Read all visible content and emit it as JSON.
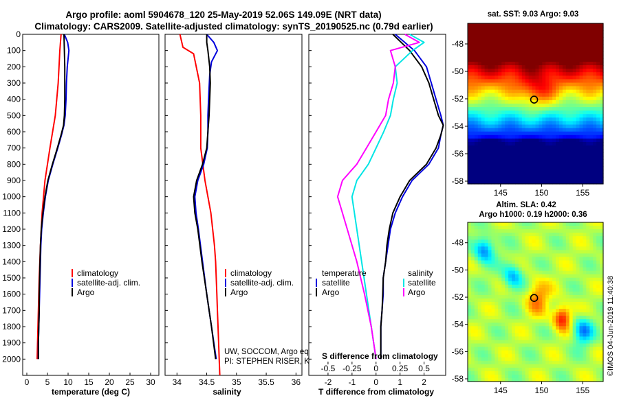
{
  "header": {
    "line1": "Argo profile: aoml 5904678_120 25-May-2019 52.06S 149.09E (NRT data)",
    "line2": "Climatology: CARS2009. Satellite-adjusted climatology: synTS_20190525.nc (0.79d earlier)"
  },
  "colors": {
    "climatology": "#ff0000",
    "satellite": "#0000dd",
    "argo": "#000000",
    "sal_satellite": "#00e5e5",
    "sal_argo": "#ff00ff"
  },
  "chart_data": [
    {
      "id": "temperature",
      "type": "line",
      "xlabel": "temperature (deg C)",
      "xlim": [
        -1,
        32
      ],
      "xticks": [
        "0",
        "5",
        "10",
        "15",
        "20",
        "25",
        "30"
      ],
      "ylim": [
        2100,
        0
      ],
      "yticks": [
        "0",
        "100",
        "200",
        "300",
        "400",
        "500",
        "600",
        "700",
        "800",
        "900",
        "1000",
        "1100",
        "1200",
        "1300",
        "1400",
        "1500",
        "1600",
        "1700",
        "1800",
        "1900",
        "2000"
      ],
      "legend": [
        "climatology",
        "satellite-adj. clim.",
        "Argo"
      ],
      "series": [
        {
          "name": "climatology",
          "color": "#ff0000",
          "depth": [
            0,
            100,
            300,
            500,
            700,
            900,
            1100,
            1300,
            1500,
            1700,
            1900,
            2000
          ],
          "values": [
            8.3,
            8.0,
            7.6,
            6.9,
            5.6,
            4.4,
            3.7,
            3.3,
            3.0,
            2.8,
            2.6,
            2.5
          ]
        },
        {
          "name": "satellite-adj. clim.",
          "color": "#0000dd",
          "depth": [
            0,
            50,
            100,
            200,
            300,
            400,
            500,
            560,
            620,
            700,
            800,
            900,
            1000,
            1100,
            1200,
            1300,
            1400,
            1500,
            1600,
            1700,
            1800,
            1900,
            2000
          ],
          "values": [
            9.1,
            9.9,
            10.2,
            9.8,
            9.6,
            9.5,
            9.3,
            9.0,
            8.4,
            7.5,
            6.3,
            5.2,
            4.5,
            4.0,
            3.6,
            3.4,
            3.3,
            3.2,
            3.1,
            3.0,
            2.9,
            2.8,
            2.8
          ]
        },
        {
          "name": "Argo",
          "color": "#000000",
          "depth": [
            0,
            100,
            200,
            300,
            400,
            500,
            560,
            620,
            700,
            800,
            900,
            1000,
            1100,
            1200,
            1300,
            1400,
            1500,
            1600,
            1700,
            1800,
            1900,
            2000
          ],
          "values": [
            9.0,
            9.1,
            9.2,
            9.2,
            9.2,
            9.1,
            8.9,
            8.3,
            7.4,
            6.2,
            5.1,
            4.4,
            3.9,
            3.5,
            3.3,
            3.2,
            3.1,
            3.0,
            3.0,
            2.9,
            2.8,
            2.8
          ]
        }
      ]
    },
    {
      "id": "salinity",
      "type": "line",
      "xlabel": "salinity",
      "xlim": [
        33.8,
        36.1
      ],
      "xticks": [
        "34",
        "34.5",
        "35",
        "35.5",
        "36"
      ],
      "ylim": [
        2100,
        0
      ],
      "legend": [
        "climatology",
        "satellite-adj. clim.",
        "Argo"
      ],
      "series": [
        {
          "name": "climatology",
          "color": "#ff0000",
          "depth": [
            0,
            80,
            120,
            300,
            500,
            700,
            900,
            1000,
            1100,
            1200,
            1300,
            1400,
            1500,
            1600,
            1700,
            1800,
            1900,
            2000,
            2100
          ],
          "values": [
            34.05,
            34.1,
            34.28,
            34.38,
            34.4,
            34.4,
            34.47,
            34.52,
            34.57,
            34.6,
            34.63,
            34.65,
            34.66,
            34.67,
            34.68,
            34.69,
            34.7,
            34.71,
            34.72
          ]
        },
        {
          "name": "satellite-adj. clim.",
          "color": "#0000dd",
          "depth": [
            0,
            50,
            100,
            170,
            250,
            400,
            500,
            600,
            700,
            800,
            900,
            1000,
            1100,
            1200,
            1400,
            1600,
            1800,
            2000
          ],
          "values": [
            34.5,
            34.62,
            34.68,
            34.58,
            34.55,
            34.53,
            34.52,
            34.52,
            34.51,
            34.45,
            34.35,
            34.3,
            34.32,
            34.36,
            34.43,
            34.5,
            34.58,
            34.66
          ]
        },
        {
          "name": "Argo",
          "color": "#000000",
          "depth": [
            0,
            50,
            100,
            200,
            300,
            400,
            500,
            600,
            700,
            800,
            900,
            1000,
            1100,
            1200,
            1400,
            1600,
            1800,
            2000
          ],
          "values": [
            34.5,
            34.5,
            34.52,
            34.55,
            34.56,
            34.55,
            34.54,
            34.52,
            34.5,
            34.43,
            34.33,
            34.28,
            34.3,
            34.35,
            34.42,
            34.5,
            34.58,
            34.65
          ]
        }
      ]
    },
    {
      "id": "difference",
      "type": "line",
      "xlabel": "T difference from climatology",
      "xlim": [
        -2.8,
        2.9
      ],
      "xticks": [
        "-2",
        "-1",
        "0",
        "1",
        "2"
      ],
      "sal_scale_label": "S difference from climatology",
      "sal_ticks": [
        "-0.5",
        "-0.25",
        "0",
        "0.25",
        "0.5"
      ],
      "ylim": [
        2100,
        0
      ],
      "legend_temperature": {
        "title": "temperature",
        "items": [
          "satellite",
          "Argo"
        ]
      },
      "legend_salinity": {
        "title": "salinity",
        "items": [
          "satellite",
          "Argo"
        ]
      },
      "series": [
        {
          "name": "temperature satellite",
          "color": "#0000dd",
          "depth": [
            0,
            100,
            200,
            300,
            400,
            500,
            560,
            620,
            700,
            800,
            900,
            1000,
            1100,
            1200,
            1300,
            1400,
            1500,
            1600,
            1700,
            1800,
            1900,
            2000
          ],
          "values": [
            0.8,
            1.6,
            2.1,
            2.3,
            2.5,
            2.7,
            2.8,
            2.7,
            2.6,
            2.2,
            1.5,
            1.1,
            0.8,
            0.6,
            0.5,
            0.4,
            0.3,
            0.3,
            0.25,
            0.2,
            0.2,
            0.2
          ]
        },
        {
          "name": "temperature Argo",
          "color": "#000000",
          "depth": [
            0,
            100,
            200,
            300,
            400,
            500,
            560,
            620,
            700,
            800,
            900,
            1000,
            1100,
            1200,
            1300,
            1400,
            1500,
            1600,
            1700,
            1800,
            1900,
            2000
          ],
          "values": [
            0.7,
            1.4,
            1.9,
            2.2,
            2.4,
            2.6,
            2.8,
            2.7,
            2.5,
            2.1,
            1.4,
            1.0,
            0.7,
            0.55,
            0.45,
            0.4,
            0.3,
            0.28,
            0.25,
            0.2,
            0.2,
            0.2
          ]
        },
        {
          "name": "salinity satellite",
          "color": "#00e5e5",
          "depth": [
            0,
            50,
            100,
            200,
            300,
            400,
            500,
            600,
            700,
            800,
            900,
            1000,
            1200,
            1400,
            1600,
            1800,
            2000
          ],
          "values": [
            0.35,
            0.5,
            0.38,
            0.2,
            0.22,
            0.18,
            0.15,
            0.08,
            0.0,
            -0.08,
            -0.2,
            -0.25,
            -0.2,
            -0.15,
            -0.1,
            -0.05,
            0.0
          ]
        },
        {
          "name": "salinity Argo",
          "color": "#ff00ff",
          "depth": [
            0,
            50,
            100,
            200,
            300,
            400,
            500,
            600,
            700,
            800,
            900,
            1000,
            1200,
            1400,
            1600,
            1800,
            2000
          ],
          "values": [
            0.3,
            0.45,
            0.15,
            0.2,
            0.18,
            0.13,
            0.1,
            0.0,
            -0.1,
            -0.2,
            -0.35,
            -0.4,
            -0.3,
            -0.2,
            -0.12,
            -0.05,
            0.0
          ]
        }
      ]
    },
    {
      "id": "sst_map",
      "type": "heatmap",
      "title": "sat. SST: 9.03 Argo: 9.03",
      "xticks": [
        "145",
        "150",
        "155"
      ],
      "yticks": [
        "-48",
        "-50",
        "-52",
        "-54",
        "-56",
        "-58"
      ],
      "xlim": [
        141,
        157.5
      ],
      "ylim": [
        -58.2,
        -46.5
      ],
      "argo_position": {
        "lon": 149.09,
        "lat": -52.06
      }
    },
    {
      "id": "sla_map",
      "type": "heatmap",
      "title": "Altim. SLA: 0.42",
      "subtitle": "Argo h1000: 0.19 h2000: 0.36",
      "xticks": [
        "145",
        "150",
        "155"
      ],
      "yticks": [
        "-48",
        "-50",
        "-52",
        "-54",
        "-56",
        "-58"
      ],
      "xlim": [
        141,
        157.5
      ],
      "ylim": [
        -58.2,
        -46.5
      ],
      "argo_position": {
        "lon": 149.09,
        "lat": -52.06
      }
    }
  ],
  "annotation": {
    "line1": "UW, SOCCOM, Argo equivalent",
    "line2": "PI: STEPHEN RISER, KENNETH JOHNSON"
  },
  "footer": {
    "stamp": "©IMOS 04-Jun-2019 11:40:38"
  }
}
